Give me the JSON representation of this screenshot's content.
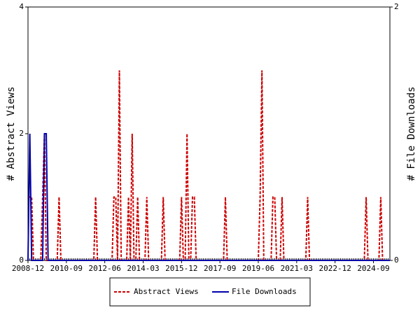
{
  "chart_data": {
    "type": "line",
    "x": [
      "2008-12",
      "2009-01",
      "2009-02",
      "2009-03",
      "2009-04",
      "2009-05",
      "2009-06",
      "2009-07",
      "2009-08",
      "2009-09",
      "2009-10",
      "2009-11",
      "2009-12",
      "2010-01",
      "2010-02",
      "2010-03",
      "2010-04",
      "2010-05",
      "2010-06",
      "2010-07",
      "2010-08",
      "2010-09",
      "2010-10",
      "2010-11",
      "2010-12",
      "2011-01",
      "2011-02",
      "2011-03",
      "2011-04",
      "2011-05",
      "2011-06",
      "2011-07",
      "2011-08",
      "2011-09",
      "2011-10",
      "2011-11",
      "2011-12",
      "2012-01",
      "2012-02",
      "2012-03",
      "2012-04",
      "2012-05",
      "2012-06",
      "2012-07",
      "2012-08",
      "2012-09",
      "2012-10",
      "2012-11",
      "2012-12",
      "2013-01",
      "2013-02",
      "2013-03",
      "2013-04",
      "2013-05",
      "2013-06",
      "2013-07",
      "2013-08",
      "2013-09",
      "2013-10",
      "2013-11",
      "2013-12",
      "2014-01",
      "2014-02",
      "2014-03",
      "2014-04",
      "2014-05",
      "2014-06",
      "2014-07",
      "2014-08",
      "2014-09",
      "2014-10",
      "2014-11",
      "2014-12",
      "2015-01",
      "2015-02",
      "2015-03",
      "2015-04",
      "2015-05",
      "2015-06",
      "2015-07",
      "2015-08",
      "2015-09",
      "2015-10",
      "2015-11",
      "2015-12",
      "2016-01",
      "2016-02",
      "2016-03",
      "2016-04",
      "2016-05",
      "2016-06",
      "2016-07",
      "2016-08",
      "2016-09",
      "2016-10",
      "2016-11",
      "2016-12",
      "2017-01",
      "2017-02",
      "2017-03",
      "2017-04",
      "2017-05",
      "2017-06",
      "2017-07",
      "2017-08",
      "2017-09",
      "2017-10",
      "2017-11",
      "2017-12",
      "2018-01",
      "2018-02",
      "2018-03",
      "2018-04",
      "2018-05",
      "2018-06",
      "2018-07",
      "2018-08",
      "2018-09",
      "2018-10",
      "2018-11",
      "2018-12",
      "2019-01",
      "2019-02",
      "2019-03",
      "2019-04",
      "2019-05",
      "2019-06",
      "2019-07",
      "2019-08",
      "2019-09",
      "2019-10",
      "2019-11",
      "2019-12",
      "2020-01",
      "2020-02",
      "2020-03",
      "2020-04",
      "2020-05",
      "2020-06",
      "2020-07",
      "2020-08",
      "2020-09",
      "2020-10",
      "2020-11",
      "2020-12",
      "2021-01",
      "2021-02",
      "2021-03",
      "2021-04",
      "2021-05",
      "2021-06",
      "2021-07",
      "2021-08",
      "2021-09",
      "2021-10",
      "2021-11",
      "2021-12",
      "2022-01",
      "2022-02",
      "2022-03",
      "2022-04",
      "2022-05",
      "2022-06",
      "2022-07",
      "2022-08",
      "2022-09",
      "2022-10",
      "2022-11",
      "2022-12",
      "2023-01",
      "2023-02",
      "2023-03",
      "2023-04",
      "2023-05",
      "2023-06",
      "2023-07",
      "2023-08",
      "2023-09",
      "2023-10",
      "2023-11",
      "2023-12",
      "2024-01",
      "2024-02",
      "2024-03",
      "2024-04",
      "2024-05",
      "2024-06",
      "2024-07",
      "2024-08",
      "2024-09",
      "2024-10",
      "2024-11",
      "2024-12",
      "2025-01",
      "2025-02",
      "2025-03",
      "2025-04",
      "2025-05",
      "2025-06"
    ],
    "series": [
      {
        "name": "Abstract Views",
        "color": "#cc0000",
        "dash": true,
        "values": [
          1,
          1,
          1,
          0,
          0,
          0,
          0,
          0,
          1,
          2,
          0,
          0,
          0,
          0,
          0,
          0,
          0,
          1,
          0,
          0,
          0,
          0,
          0,
          0,
          0,
          0,
          0,
          0,
          0,
          0,
          0,
          0,
          0,
          0,
          0,
          0,
          0,
          1,
          0,
          0,
          0,
          0,
          0,
          0,
          0,
          0,
          0,
          1,
          1,
          0,
          3,
          0,
          0,
          0,
          0,
          1,
          0,
          2,
          0,
          0,
          1,
          0,
          0,
          0,
          0,
          1,
          0,
          0,
          0,
          0,
          0,
          0,
          0,
          0,
          1,
          0,
          0,
          0,
          0,
          0,
          0,
          0,
          0,
          0,
          1,
          0,
          0,
          2,
          0,
          0,
          1,
          1,
          0,
          0,
          0,
          0,
          0,
          0,
          0,
          0,
          0,
          0,
          0,
          0,
          0,
          0,
          0,
          0,
          1,
          0,
          0,
          0,
          0,
          0,
          0,
          0,
          0,
          0,
          0,
          0,
          0,
          0,
          0,
          0,
          0,
          0,
          0,
          1,
          3,
          0,
          0,
          0,
          0,
          0,
          1,
          1,
          0,
          0,
          0,
          1,
          0,
          0,
          0,
          0,
          0,
          0,
          0,
          0,
          0,
          0,
          0,
          0,
          0,
          1,
          0,
          0,
          0,
          0,
          0,
          0,
          0,
          0,
          0,
          0,
          0,
          0,
          0,
          0,
          0,
          0,
          0,
          0,
          0,
          0,
          0,
          0,
          0,
          0,
          0,
          0,
          0,
          0,
          0,
          0,
          0,
          1,
          0,
          0,
          0,
          0,
          0,
          0,
          0,
          1,
          0,
          0,
          0,
          0,
          0
        ]
      },
      {
        "name": "File Downloads",
        "color": "#0000aa",
        "dash": false,
        "axis": "y2",
        "values": [
          0,
          1,
          0,
          0,
          0,
          0,
          0,
          0,
          0,
          1,
          1,
          0,
          0,
          0,
          0,
          0,
          0,
          0,
          0,
          0,
          0,
          0,
          0,
          0,
          0,
          0,
          0,
          0,
          0,
          0,
          0,
          0,
          0,
          0,
          0,
          0,
          0,
          0,
          0,
          0,
          0,
          0,
          0,
          0,
          0,
          0,
          0,
          0,
          0,
          0,
          0,
          0,
          0,
          0,
          0,
          0,
          0,
          0,
          0,
          0,
          0,
          0,
          0,
          0,
          0,
          0,
          0,
          0,
          0,
          0,
          0,
          0,
          0,
          0,
          0,
          0,
          0,
          0,
          0,
          0,
          0,
          0,
          0,
          0,
          0,
          0,
          0,
          0,
          0,
          0,
          0,
          0,
          0,
          0,
          0,
          0,
          0,
          0,
          0,
          0,
          0,
          0,
          0,
          0,
          0,
          0,
          0,
          0,
          0,
          0,
          0,
          0,
          0,
          0,
          0,
          0,
          0,
          0,
          0,
          0,
          0,
          0,
          0,
          0,
          0,
          0,
          0,
          0,
          0,
          0,
          0,
          0,
          0,
          0,
          0,
          0,
          0,
          0,
          0,
          0,
          0,
          0,
          0,
          0,
          0,
          0,
          0,
          0,
          0,
          0,
          0,
          0,
          0,
          0,
          0,
          0,
          0,
          0,
          0,
          0,
          0,
          0,
          0,
          0,
          0,
          0,
          0,
          0,
          0,
          0,
          0,
          0,
          0,
          0,
          0,
          0,
          0,
          0,
          0,
          0,
          0,
          0,
          0,
          0,
          0,
          0,
          0,
          0,
          0,
          0,
          0,
          0,
          0,
          0,
          0,
          0,
          0,
          0,
          0
        ]
      }
    ],
    "ylabel": "# Abstract Views",
    "y2label": "# File Downloads",
    "xlim": [
      "2008-12",
      "2025-06"
    ],
    "xticks": [
      "2008-12",
      "2010-09",
      "2012-06",
      "2014-03",
      "2015-12",
      "2017-09",
      "2019-06",
      "2021-03",
      "2022-12",
      "2024-09"
    ],
    "ylim": [
      0,
      4
    ],
    "yticks": [
      0,
      2,
      4
    ],
    "y2lim": [
      0,
      2
    ],
    "y2ticks": [
      0,
      2
    ],
    "legend": "bottom"
  }
}
